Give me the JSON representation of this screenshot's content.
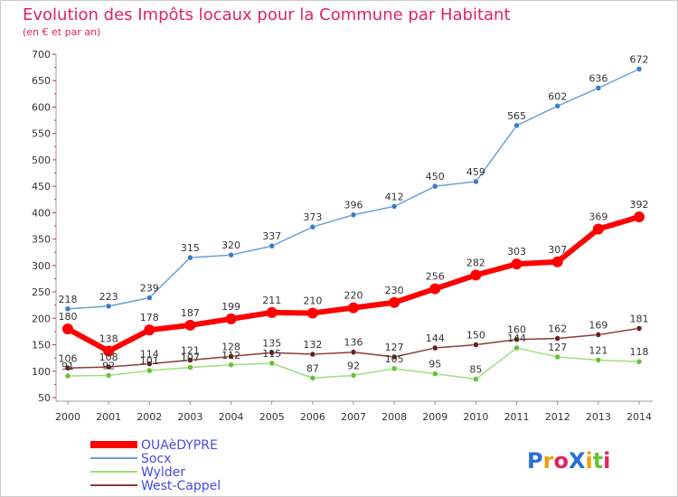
{
  "chart_data": {
    "type": "line",
    "title": "Evolution des Impôts locaux pour la Commune par Habitant",
    "subtitle": "(en € et par an)",
    "x": [
      "2000",
      "2001",
      "2002",
      "2003",
      "2004",
      "2005",
      "2006",
      "2007",
      "2008",
      "2009",
      "2010",
      "2011",
      "2012",
      "2013",
      "2014"
    ],
    "ylim": [
      50,
      700
    ],
    "yticks": [
      "50",
      "100",
      "150",
      "200",
      "250",
      "300",
      "350",
      "400",
      "450",
      "500",
      "550",
      "600",
      "650",
      "700"
    ],
    "grid": false,
    "legend_position": "bottom-left",
    "series": [
      {
        "name": "Socx",
        "color": "#6aa0d8",
        "marker": "#3a7cc8",
        "values": [
          218,
          223,
          239,
          315,
          320,
          337,
          373,
          396,
          412,
          450,
          459,
          565,
          602,
          636,
          672
        ]
      },
      {
        "name": "Wylder",
        "color": "#99e07a",
        "marker": "#66c23a",
        "values": [
          91,
          92,
          101,
          107,
          112,
          115,
          87,
          92,
          105,
          95,
          85,
          144,
          127,
          121,
          118
        ]
      },
      {
        "name": "West-Cappel",
        "color": "#8b3a3a",
        "marker": "#6a1f1f",
        "values": [
          106,
          108,
          114,
          121,
          128,
          135,
          132,
          136,
          127,
          144,
          150,
          160,
          162,
          169,
          181
        ]
      },
      {
        "name": "OUAèDYPRE",
        "color": "#ff0000",
        "marker": "#ff0000",
        "values": [
          180,
          138,
          178,
          187,
          199,
          211,
          210,
          220,
          230,
          256,
          282,
          303,
          307,
          369,
          392
        ]
      }
    ]
  },
  "legend": {
    "labels": [
      "OUAèDYPRE",
      "Socx",
      "Wylder",
      "West-Cappel"
    ]
  },
  "brand": {
    "text": "ProXiti"
  }
}
